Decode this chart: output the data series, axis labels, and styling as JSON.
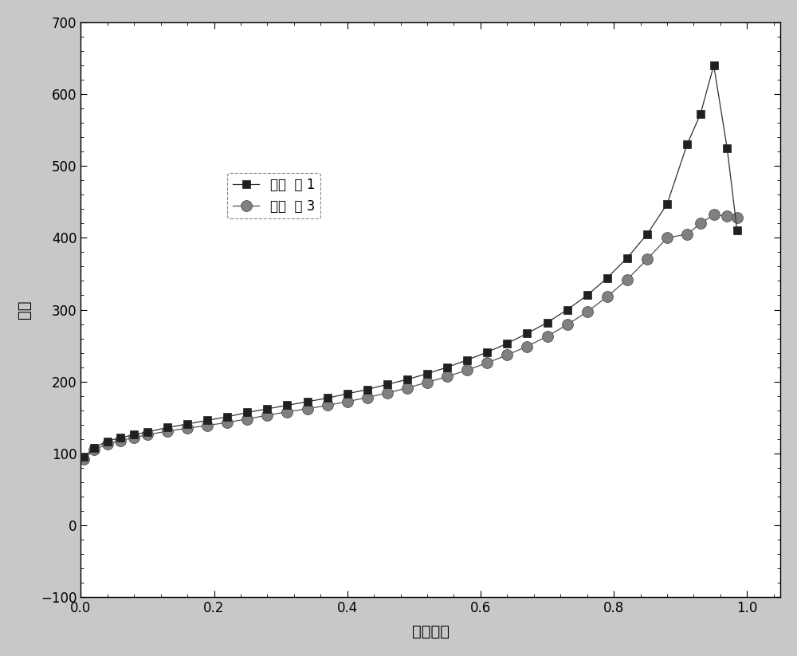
{
  "title": "",
  "xlabel": "相对压力",
  "ylabel": "孔容",
  "xlim": [
    0.0,
    1.05
  ],
  "ylim": [
    -100,
    700
  ],
  "yticks": [
    -100,
    0,
    100,
    200,
    300,
    400,
    500,
    600,
    700
  ],
  "xticks": [
    0.0,
    0.2,
    0.4,
    0.6,
    0.8,
    1.0
  ],
  "legend1_label": "实施  例 1",
  "legend2_label": "实施  例 3",
  "color1": "#303030",
  "color2": "#505050",
  "series1_x": [
    0.005,
    0.02,
    0.04,
    0.06,
    0.08,
    0.1,
    0.13,
    0.16,
    0.19,
    0.22,
    0.25,
    0.28,
    0.31,
    0.34,
    0.37,
    0.4,
    0.43,
    0.46,
    0.49,
    0.52,
    0.55,
    0.58,
    0.61,
    0.64,
    0.67,
    0.7,
    0.73,
    0.76,
    0.79,
    0.82,
    0.85,
    0.88,
    0.91,
    0.93,
    0.95,
    0.97,
    0.985
  ],
  "series1_y": [
    95,
    108,
    117,
    122,
    126,
    130,
    136,
    141,
    146,
    151,
    157,
    162,
    167,
    172,
    177,
    183,
    189,
    196,
    203,
    211,
    220,
    230,
    241,
    253,
    267,
    282,
    300,
    320,
    344,
    372,
    405,
    447,
    530,
    572,
    640,
    525,
    410
  ],
  "series2_x": [
    0.005,
    0.02,
    0.04,
    0.06,
    0.08,
    0.1,
    0.13,
    0.16,
    0.19,
    0.22,
    0.25,
    0.28,
    0.31,
    0.34,
    0.37,
    0.4,
    0.43,
    0.46,
    0.49,
    0.52,
    0.55,
    0.58,
    0.61,
    0.64,
    0.67,
    0.7,
    0.73,
    0.76,
    0.79,
    0.82,
    0.85,
    0.88,
    0.91,
    0.93,
    0.95,
    0.97,
    0.985
  ],
  "series2_y": [
    92,
    105,
    113,
    118,
    122,
    126,
    131,
    135,
    139,
    143,
    148,
    153,
    158,
    162,
    167,
    172,
    178,
    184,
    191,
    199,
    207,
    216,
    226,
    237,
    249,
    263,
    279,
    297,
    318,
    342,
    370,
    400,
    405,
    420,
    432,
    430,
    428
  ],
  "plot_bg": "#ffffff",
  "fig_bg": "#c8c8c8",
  "marker1_face": "#202020",
  "marker1_edge": "#202020",
  "marker2_face": "#808080",
  "marker2_edge": "#404040"
}
